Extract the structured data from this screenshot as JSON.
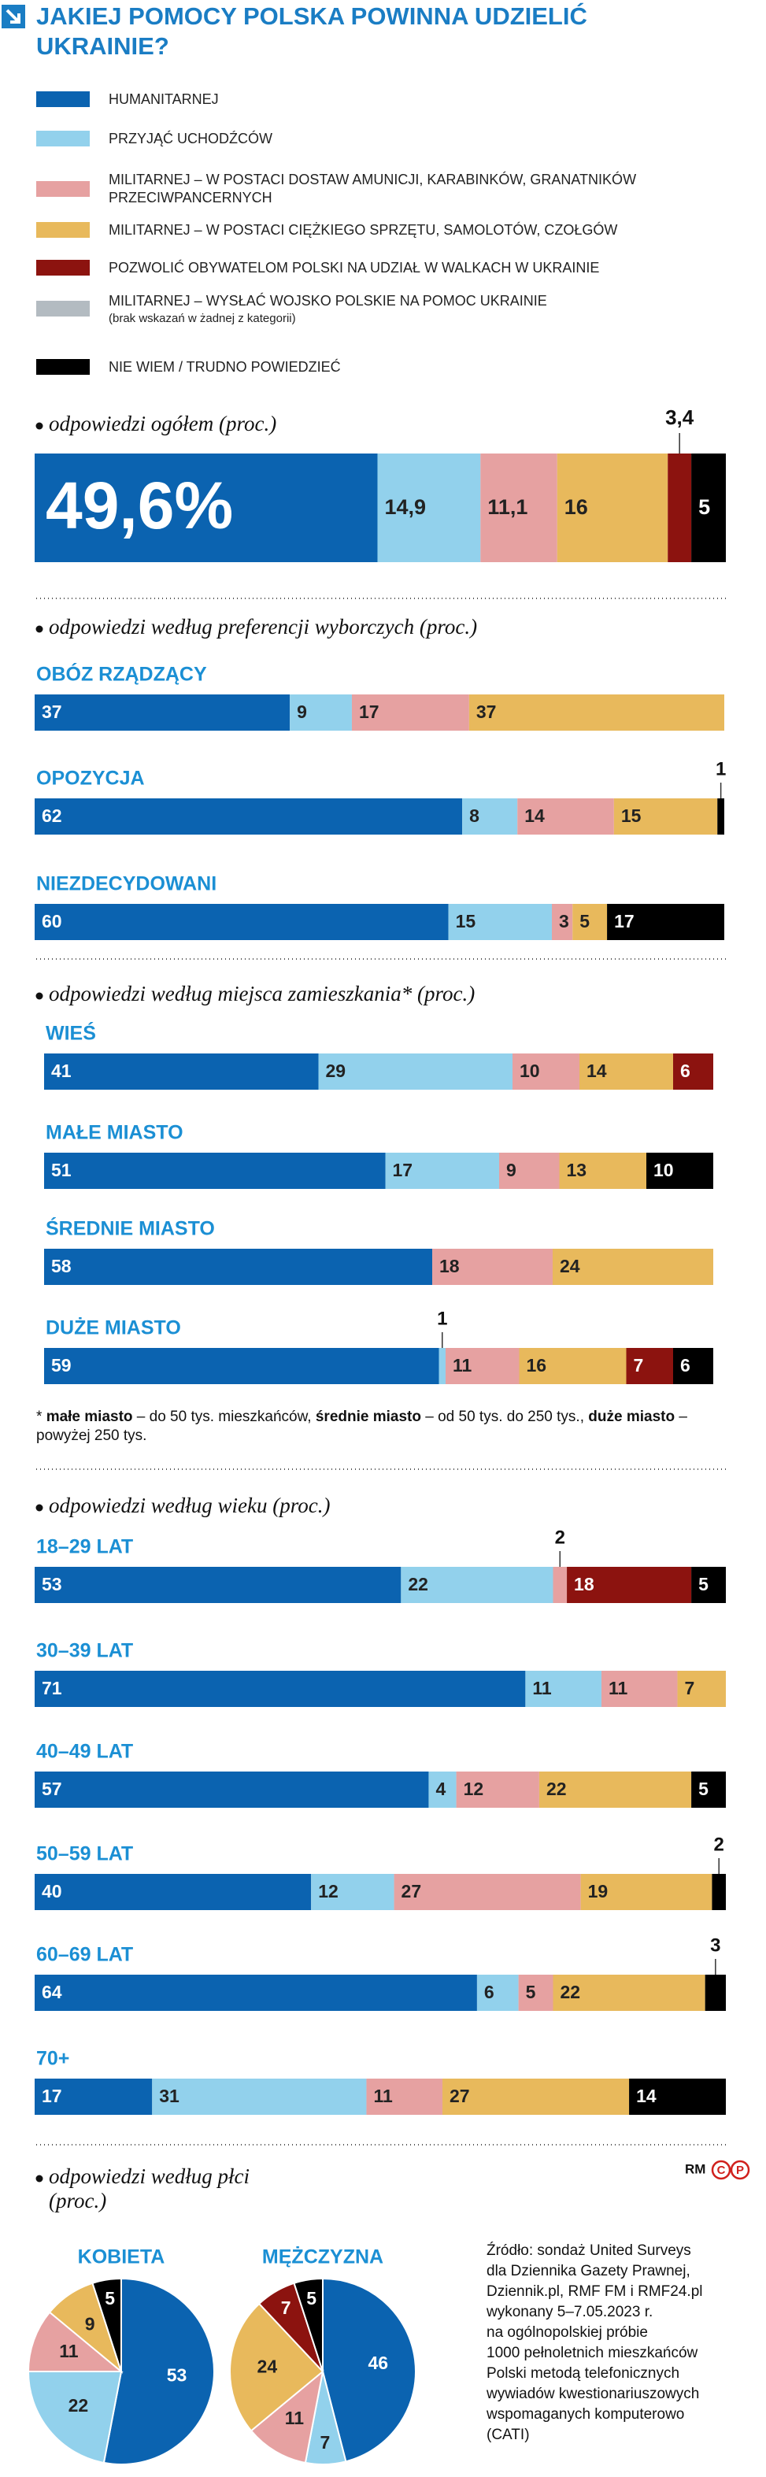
{
  "title": "JAKIEJ POMOCY POLSKA POWINNA UDZIELIĆ UKRAINIE?",
  "chart_data": [
    {
      "type": "stacked-bar",
      "subtitle": "odpowiedzi ogółem (proc.)",
      "categories": [
        null
      ],
      "xlim": [
        0,
        100
      ],
      "series": [
        {
          "name": "HUMANITARNEJ",
          "color": "#0b63b0",
          "values": [
            49.6
          ],
          "value_labels": [
            "49,6%"
          ]
        },
        {
          "name": "PRZYJĄĆ UCHODŹCÓW",
          "color": "#92d1ec",
          "values": [
            14.9
          ],
          "value_labels": [
            "14,9"
          ]
        },
        {
          "name": "MILITARNEJ – W POSTACI DOSTAW AMUNICJI, KARABINKÓW, GRANATNIKÓW PRZECIWPANCERNYCH",
          "color": "#e6a1a1",
          "values": [
            11.1
          ],
          "value_labels": [
            "11,1"
          ]
        },
        {
          "name": "MILITARNEJ – W POSTACI CIĘŻKIEGO SPRZĘTU, SAMOLOTÓW, CZOŁGÓW",
          "color": "#e8b95c",
          "values": [
            16
          ]
        },
        {
          "name": "POZWOLIĆ OBYWATELOM POLSKI NA UDZIAŁ W WALKACH W UKRAINIE",
          "color": "#8c130f",
          "values": [
            3.4
          ],
          "value_labels": [
            "3,4"
          ]
        },
        {
          "name": "MILITARNEJ – WYSŁAĆ WOJSKO POLSKIE NA POMOC UKRAINIE",
          "note": "(brak wskazań w żadnej z kategorii)",
          "color": "#b3bbc1",
          "values": [
            0
          ]
        },
        {
          "name": "NIE WIEM / TRUDNO POWIEDZIEĆ",
          "color": "#000000",
          "values": [
            5
          ]
        }
      ]
    },
    {
      "type": "stacked-bar",
      "subtitle": "odpowiedzi według preferencji wyborczych (proc.)",
      "categories": [
        "OBÓZ RZĄDZĄCY",
        "OPOZYCJA",
        "NIEZDECYDOWANI"
      ],
      "xlim": [
        0,
        100
      ],
      "series": [
        {
          "values": [
            37,
            62,
            60
          ]
        },
        {
          "values": [
            9,
            8,
            15
          ]
        },
        {
          "values": [
            17,
            14,
            3
          ]
        },
        {
          "values": [
            37,
            15,
            5
          ]
        },
        {
          "values": [
            0,
            0,
            0
          ]
        },
        {
          "values": [
            0,
            0,
            0
          ]
        },
        {
          "values": [
            0,
            1,
            17
          ]
        }
      ]
    },
    {
      "type": "stacked-bar",
      "subtitle": "odpowiedzi według miejsca zamieszkania* (proc.)",
      "categories": [
        "WIEŚ",
        "MAŁE MIASTO",
        "ŚREDNIE MIASTO",
        "DUŻE MIASTO"
      ],
      "xlim": [
        0,
        100
      ],
      "series": [
        {
          "values": [
            41,
            51,
            58,
            59
          ]
        },
        {
          "values": [
            29,
            17,
            0,
            1
          ]
        },
        {
          "values": [
            10,
            9,
            18,
            11
          ]
        },
        {
          "values": [
            14,
            13,
            24,
            16
          ]
        },
        {
          "values": [
            6,
            0,
            0,
            7
          ]
        },
        {
          "values": [
            0,
            0,
            0,
            0
          ]
        },
        {
          "values": [
            0,
            10,
            0,
            6
          ]
        }
      ],
      "footnote": [
        {
          "text": "* "
        },
        {
          "text": "małe miasto",
          "bold": true
        },
        {
          "text": " – do 50 tys. mieszkańców, "
        },
        {
          "text": "średnie miasto",
          "bold": true
        },
        {
          "text": " – od 50 tys. do 250 tys., "
        },
        {
          "text": "duże miasto",
          "bold": true
        },
        {
          "text": " – powyżej 250 tys."
        }
      ]
    },
    {
      "type": "stacked-bar",
      "subtitle": "odpowiedzi według wieku (proc.)",
      "categories": [
        "18–29 LAT",
        "30–39 LAT",
        "40–49 LAT",
        "50–59 LAT",
        "60–69 LAT",
        "70+"
      ],
      "xlim": [
        0,
        100
      ],
      "series": [
        {
          "values": [
            53,
            71,
            57,
            40,
            64,
            17
          ]
        },
        {
          "values": [
            22,
            11,
            4,
            12,
            6,
            31
          ]
        },
        {
          "values": [
            2,
            11,
            12,
            27,
            5,
            11
          ]
        },
        {
          "values": [
            0,
            7,
            22,
            19,
            22,
            27
          ]
        },
        {
          "values": [
            18,
            0,
            0,
            0,
            0,
            0
          ]
        },
        {
          "values": [
            0,
            0,
            0,
            0,
            0,
            0
          ]
        },
        {
          "values": [
            5,
            0,
            5,
            2,
            3,
            14
          ]
        }
      ]
    },
    {
      "type": "pie",
      "subtitle": "odpowiedzi według płci (proc.)",
      "categories": [
        "KOBIETA",
        "MĘŻCZYZNA"
      ],
      "series": [
        {
          "values": [
            53,
            46
          ]
        },
        {
          "values": [
            22,
            7
          ]
        },
        {
          "values": [
            11,
            11
          ]
        },
        {
          "values": [
            9,
            24
          ]
        },
        {
          "values": [
            0,
            7
          ]
        },
        {
          "values": [
            0,
            0
          ]
        },
        {
          "values": [
            5,
            5
          ]
        }
      ]
    }
  ],
  "logo": {
    "text": "RM",
    "circled": [
      "C",
      "P"
    ]
  },
  "source": [
    "Źródło: sondaż United Surveys",
    "dla Dziennika Gazety Prawnej,",
    "Dziennik.pl, RMF FM i RMF24.pl",
    "wykonany 5–7.05.2023 r.",
    "na ogólnopolskiej próbie",
    "1000 pełnoletnich mieszkańców",
    "Polski metodą telefonicznych",
    "wywiadów kwestionariuszowych",
    "wspomaganych komputerowo",
    "(CATI)"
  ]
}
